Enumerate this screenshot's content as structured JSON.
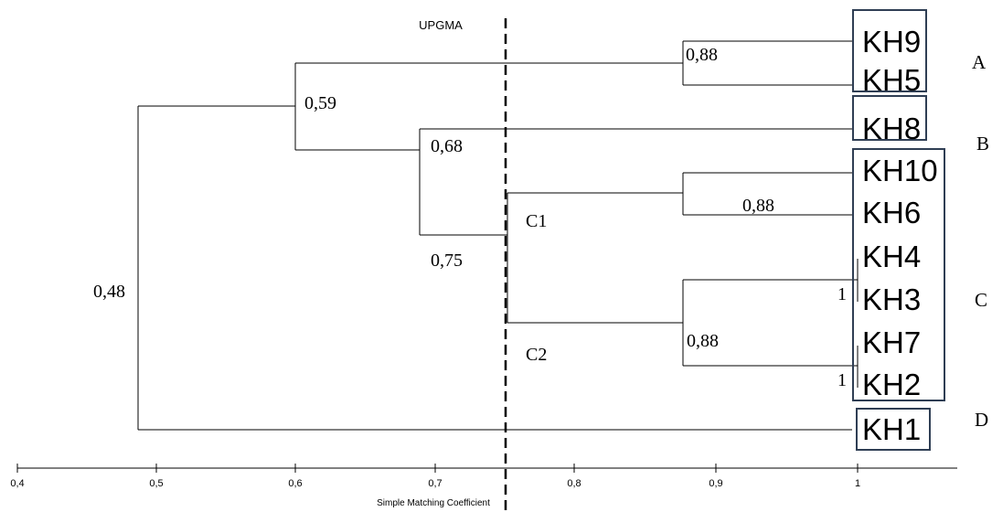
{
  "title": "UPGMA",
  "x_axis_label": "Simple Matching Coefficient",
  "x_ticks": [
    "0,4",
    "0,5",
    "0,6",
    "0,7",
    "0,8",
    "0,9",
    "1"
  ],
  "leaves": [
    "KH9",
    "KH5",
    "KH8",
    "KH10",
    "KH6",
    "KH4",
    "KH3",
    "KH7",
    "KH2",
    "KH1"
  ],
  "node_labels": {
    "n_kh9_kh5": "0,88",
    "n_a_b": "0,59",
    "n_b_c": "0,68",
    "n_c": "0,75",
    "n_kh10_kh6": "0,88",
    "n_kh4_kh3": "1",
    "n_kh7_kh2": "1",
    "n_c2": "0,88",
    "root": "0,48"
  },
  "subcluster_labels": {
    "c1": "C1",
    "c2": "C2"
  },
  "group_labels": {
    "a": "A",
    "b": "B",
    "c": "C",
    "d": "D"
  },
  "cut_line": 0.75,
  "colors": {
    "box_border": "#2f3e54",
    "lines": "#000000"
  }
}
